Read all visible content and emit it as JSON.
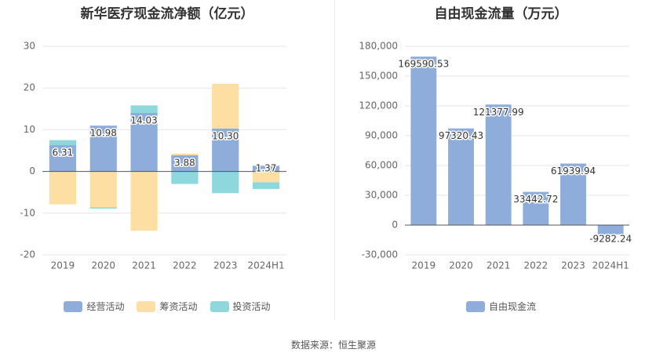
{
  "footer": {
    "source": "数据来源：恒生聚源"
  },
  "chart_data": [
    {
      "type": "bar",
      "stacked": true,
      "title": "新华医疗现金流净额（亿元）",
      "categories": [
        "2019",
        "2020",
        "2021",
        "2022",
        "2023",
        "2024H1"
      ],
      "ylim": [
        -20,
        30
      ],
      "yticks": [
        -20,
        -10,
        0,
        10,
        20,
        30
      ],
      "grid": true,
      "legend_position": "bottom",
      "series": [
        {
          "name": "经营活动",
          "color": "#8eaddb",
          "values": [
            6.31,
            10.98,
            14.03,
            3.88,
            10.3,
            1.37
          ]
        },
        {
          "name": "筹资活动",
          "color": "#fddfa4",
          "values": [
            -7.9,
            -8.6,
            -14.2,
            0.4,
            10.7,
            -2.6
          ]
        },
        {
          "name": "投资活动",
          "color": "#8ed7dc",
          "values": [
            1.2,
            -0.3,
            1.8,
            -3.0,
            -5.2,
            -1.6
          ]
        }
      ],
      "data_labels": [
        "6.31",
        "10.98",
        "14.03",
        "3.88",
        "10.30",
        "1.37"
      ]
    },
    {
      "type": "bar",
      "title": "自由现金流量（万元）",
      "categories": [
        "2019",
        "2020",
        "2021",
        "2022",
        "2023",
        "2024H1"
      ],
      "ylim": [
        -30000,
        180000
      ],
      "yticks": [
        -30000,
        0,
        30000,
        60000,
        90000,
        120000,
        150000,
        180000
      ],
      "ytick_labels": [
        "-30,000",
        "0",
        "30,000",
        "60,000",
        "90,000",
        "120,000",
        "150,000",
        "180,000"
      ],
      "grid": true,
      "legend_position": "bottom",
      "series": [
        {
          "name": "自由现金流",
          "color": "#8eaddb",
          "values": [
            169590.53,
            97320.43,
            121377.99,
            33442.72,
            61939.94,
            -9282.24
          ]
        }
      ],
      "data_labels": [
        "169590.53",
        "97320.43",
        "121377.99",
        "33442.72",
        "61939.94",
        "-9282.24"
      ]
    }
  ]
}
